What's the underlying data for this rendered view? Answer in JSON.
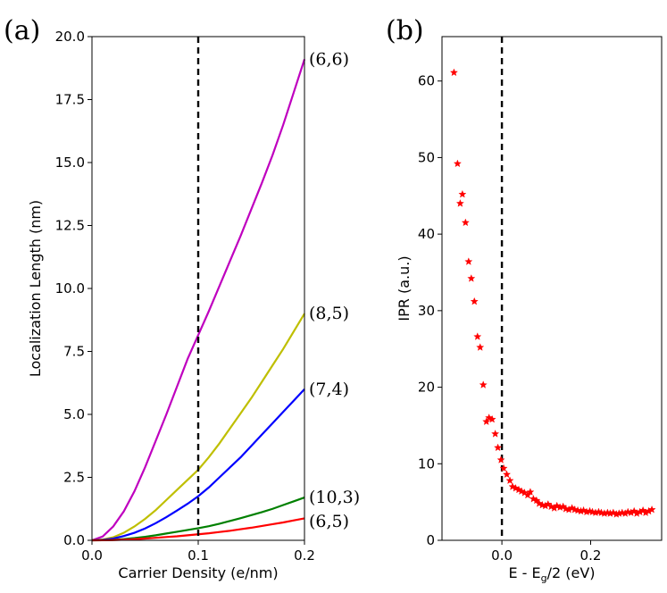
{
  "chart_data": [
    {
      "type": "line",
      "panel_label": "(a)",
      "xlabel": "Carrier Density (e/nm)",
      "ylabel": "Localization Length (nm)",
      "xlim": [
        0.0,
        0.2
      ],
      "ylim": [
        0.0,
        20.0
      ],
      "xticks": [
        "0.0",
        "0.1",
        "0.2"
      ],
      "yticks": [
        "0.0",
        "2.5",
        "5.0",
        "7.5",
        "10.0",
        "12.5",
        "15.0",
        "17.5",
        "20.0"
      ],
      "grid": false,
      "vline": {
        "x": 0.1,
        "style": "dashed",
        "color": "#000000"
      },
      "x": [
        0.0,
        0.01,
        0.02,
        0.03,
        0.04,
        0.05,
        0.06,
        0.07,
        0.08,
        0.09,
        0.1,
        0.11,
        0.12,
        0.13,
        0.14,
        0.15,
        0.16,
        0.17,
        0.18,
        0.19,
        0.2
      ],
      "series": [
        {
          "name": "(6,6)",
          "color": "#bf00bf",
          "values": [
            0.0,
            0.15,
            0.55,
            1.15,
            1.95,
            2.9,
            3.95,
            5.0,
            6.1,
            7.2,
            8.15,
            9.1,
            10.1,
            11.1,
            12.1,
            13.15,
            14.2,
            15.3,
            16.5,
            17.8,
            19.1
          ]
        },
        {
          "name": "(8,5)",
          "color": "#bfbf00",
          "values": [
            0.0,
            0.03,
            0.12,
            0.3,
            0.55,
            0.85,
            1.2,
            1.6,
            2.0,
            2.4,
            2.8,
            3.3,
            3.85,
            4.45,
            5.05,
            5.65,
            6.3,
            6.95,
            7.6,
            8.3,
            9.0
          ]
        },
        {
          "name": "(7,4)",
          "color": "#0000ff",
          "values": [
            0.0,
            0.02,
            0.07,
            0.17,
            0.3,
            0.47,
            0.68,
            0.92,
            1.18,
            1.45,
            1.75,
            2.1,
            2.5,
            2.9,
            3.3,
            3.75,
            4.2,
            4.65,
            5.1,
            5.55,
            6.0
          ]
        },
        {
          "name": "(10,3)",
          "color": "#008000",
          "values": [
            0.0,
            0.005,
            0.02,
            0.05,
            0.09,
            0.14,
            0.2,
            0.27,
            0.34,
            0.41,
            0.48,
            0.56,
            0.66,
            0.77,
            0.88,
            1.0,
            1.12,
            1.25,
            1.4,
            1.55,
            1.7
          ]
        },
        {
          "name": "(6,5)",
          "color": "#ff0000",
          "values": [
            0.0,
            0.002,
            0.01,
            0.025,
            0.045,
            0.07,
            0.1,
            0.13,
            0.16,
            0.2,
            0.24,
            0.28,
            0.33,
            0.38,
            0.44,
            0.5,
            0.57,
            0.64,
            0.71,
            0.79,
            0.87
          ]
        }
      ]
    },
    {
      "type": "scatter",
      "panel_label": "(b)",
      "xlabel": "E - E",
      "xlabel_sub": "g",
      "xlabel_rest": "/2 (eV)",
      "ylabel": "IPR (a.u.)",
      "xlim": [
        -0.135,
        0.36
      ],
      "ylim": [
        0.0,
        65.8
      ],
      "xticks": [
        0.0,
        0.2
      ],
      "yticks": [
        0,
        10,
        20,
        30,
        40,
        50,
        60
      ],
      "grid": false,
      "marker": "star",
      "color": "#ff0000",
      "vline": {
        "x": 0.0,
        "style": "dashed",
        "color": "#000000"
      },
      "points": [
        [
          -0.108,
          61.1
        ],
        [
          -0.1,
          49.2
        ],
        [
          -0.094,
          44.0
        ],
        [
          -0.089,
          45.2
        ],
        [
          -0.082,
          41.5
        ],
        [
          -0.075,
          36.4
        ],
        [
          -0.069,
          34.2
        ],
        [
          -0.062,
          31.2
        ],
        [
          -0.055,
          26.6
        ],
        [
          -0.049,
          25.2
        ],
        [
          -0.042,
          20.3
        ],
        [
          -0.035,
          15.5
        ],
        [
          -0.029,
          16.0
        ],
        [
          -0.022,
          15.8
        ],
        [
          -0.015,
          13.9
        ],
        [
          -0.009,
          12.1
        ],
        [
          -0.002,
          10.5
        ],
        [
          0.004,
          9.4
        ],
        [
          0.011,
          8.6
        ],
        [
          0.018,
          7.8
        ],
        [
          0.024,
          7.0
        ],
        [
          0.031,
          6.8
        ],
        [
          0.038,
          6.6
        ],
        [
          0.044,
          6.4
        ],
        [
          0.051,
          6.2
        ],
        [
          0.058,
          5.9
        ],
        [
          0.064,
          6.3
        ],
        [
          0.071,
          5.4
        ],
        [
          0.078,
          5.2
        ],
        [
          0.084,
          4.8
        ],
        [
          0.091,
          4.6
        ],
        [
          0.098,
          4.5
        ],
        [
          0.104,
          4.7
        ],
        [
          0.111,
          4.4
        ],
        [
          0.118,
          4.2
        ],
        [
          0.124,
          4.5
        ],
        [
          0.131,
          4.3
        ],
        [
          0.138,
          4.4
        ],
        [
          0.144,
          4.1
        ],
        [
          0.151,
          4.0
        ],
        [
          0.158,
          4.2
        ],
        [
          0.164,
          4.0
        ],
        [
          0.171,
          3.9
        ],
        [
          0.178,
          3.8
        ],
        [
          0.184,
          3.9
        ],
        [
          0.191,
          3.7
        ],
        [
          0.198,
          3.8
        ],
        [
          0.204,
          3.7
        ],
        [
          0.211,
          3.6
        ],
        [
          0.218,
          3.7
        ],
        [
          0.224,
          3.6
        ],
        [
          0.231,
          3.5
        ],
        [
          0.238,
          3.6
        ],
        [
          0.244,
          3.5
        ],
        [
          0.251,
          3.6
        ],
        [
          0.258,
          3.4
        ],
        [
          0.264,
          3.5
        ],
        [
          0.271,
          3.6
        ],
        [
          0.278,
          3.5
        ],
        [
          0.284,
          3.7
        ],
        [
          0.291,
          3.6
        ],
        [
          0.298,
          3.8
        ],
        [
          0.304,
          3.5
        ],
        [
          0.311,
          3.7
        ],
        [
          0.318,
          3.9
        ],
        [
          0.324,
          3.6
        ],
        [
          0.331,
          3.8
        ],
        [
          0.338,
          4.0
        ]
      ]
    }
  ]
}
